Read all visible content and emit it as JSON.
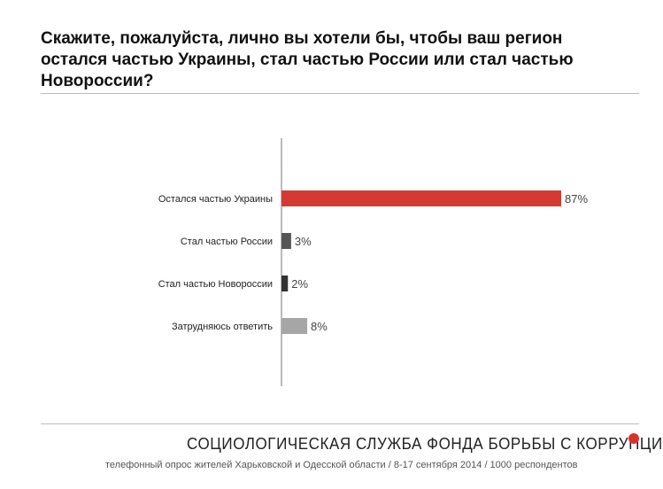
{
  "header": {
    "title": "Скажите, пожалуйста, лично вы хотели бы, чтобы ваш регион остался частью Украины, стал частью России или стал частью Новороссии?"
  },
  "chart_data": {
    "type": "bar",
    "orientation": "horizontal",
    "categories": [
      "Остался частью Украины",
      "Стал частью России",
      "Стал частью Новороссии",
      "Затрудняюсь ответить"
    ],
    "values": [
      87,
      3,
      2,
      8
    ],
    "value_labels": [
      "87%",
      "3%",
      "2%",
      "8%"
    ],
    "unit": "%",
    "bar_colors": [
      "#d33a33",
      "#555555",
      "#333333",
      "#a6a6a6"
    ],
    "xlim": [
      0,
      100
    ],
    "grid": false,
    "legend": "none"
  },
  "footer": {
    "organization": "СОЦИОЛОГИЧЕСКАЯ СЛУЖБА ФОНДА БОРЬБЫ С КОРРУПЦИЕЙ",
    "source_note": "телефонный опрос жителей Харьковской и Одесской области / 8-17 сентября 2014 / 1000 респондентов",
    "accent_color": "#d9322d"
  }
}
